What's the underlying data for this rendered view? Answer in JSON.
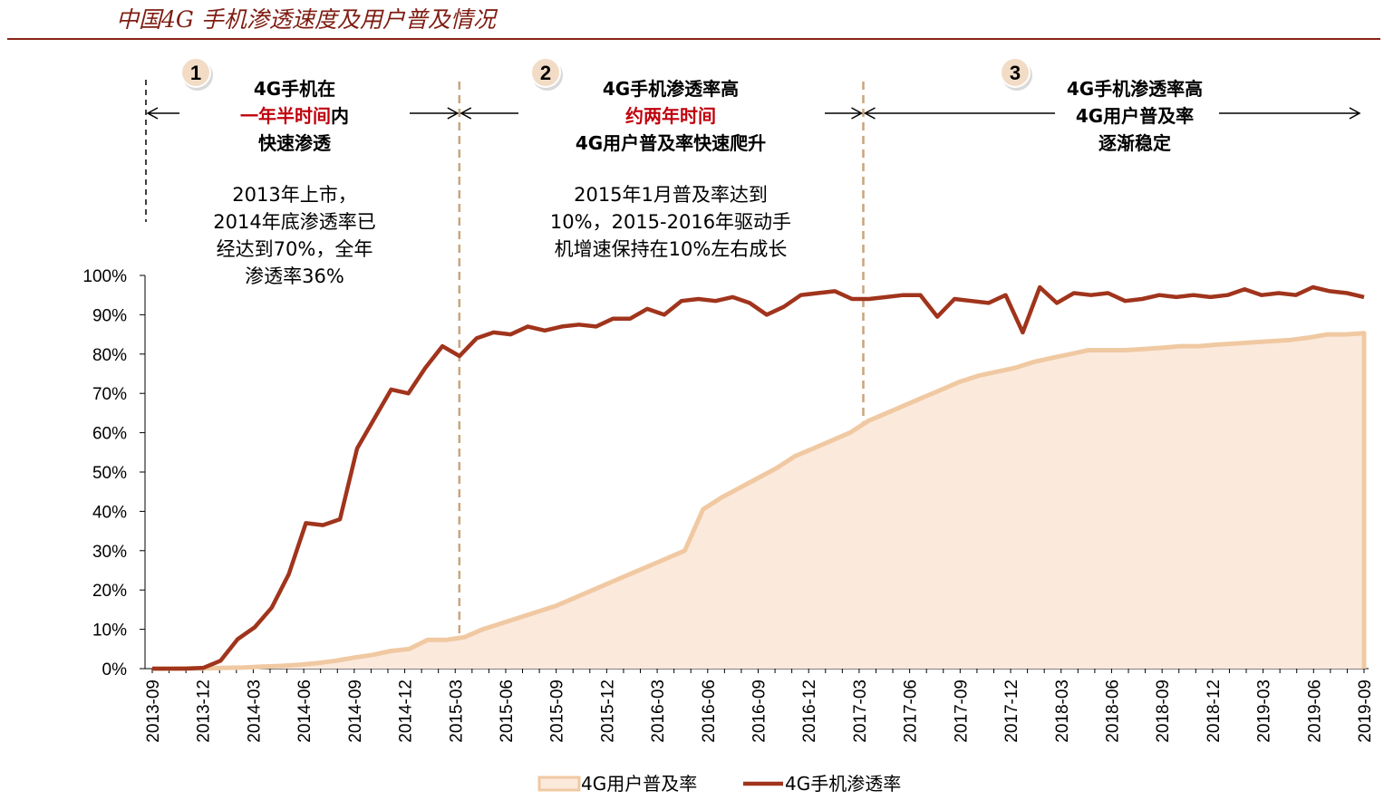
{
  "page_title": "中国4G 手机渗透速度及用户普及情况",
  "phases": [
    {
      "marker": "1",
      "lines": [
        {
          "text": "4G手机在",
          "highlight": false
        },
        {
          "text": "一年半时间",
          "highlight": true,
          "suffix": "内"
        },
        {
          "text": "快速渗透",
          "highlight": false
        }
      ],
      "note": [
        "2013年上市，",
        "2014年底渗透率已",
        "经达到70%，全年",
        "渗透率36%"
      ]
    },
    {
      "marker": "2",
      "lines": [
        {
          "text": "4G手机渗透率高",
          "highlight": false
        },
        {
          "text": "约两年时间",
          "highlight": true
        },
        {
          "text": "4G用户普及率快速爬升",
          "highlight": false
        }
      ],
      "note": [
        "2015年1月普及率达到",
        "10%，2015-2016年驱动手",
        "机增速保持在10%左右成长"
      ]
    },
    {
      "marker": "3",
      "lines": [
        {
          "text": "4G手机渗透率高",
          "highlight": false
        },
        {
          "text": "4G用户普及率",
          "highlight": false
        },
        {
          "text": "逐渐稳定",
          "highlight": false
        }
      ],
      "note": []
    }
  ],
  "chart_data": {
    "type": "line",
    "title": "中国4G 手机渗透速度及用户普及情况",
    "xlabel": "",
    "ylabel": "",
    "ylim": [
      0,
      100
    ],
    "y_ticks": [
      "0%",
      "10%",
      "20%",
      "30%",
      "40%",
      "50%",
      "60%",
      "70%",
      "80%",
      "90%",
      "100%"
    ],
    "x_ticks": [
      "2013-09",
      "2013-12",
      "2014-03",
      "2014-06",
      "2014-09",
      "2014-12",
      "2015-03",
      "2015-06",
      "2015-09",
      "2015-12",
      "2016-03",
      "2016-06",
      "2016-09",
      "2016-12",
      "2017-03",
      "2017-06",
      "2017-09",
      "2017-12",
      "2018-03",
      "2018-06",
      "2018-09",
      "2018-12",
      "2019-03",
      "2019-06",
      "2019-09"
    ],
    "phase_boundaries": [
      "2015-04",
      "2017-04"
    ],
    "legend": {
      "position": "bottom"
    },
    "series": [
      {
        "name": "4G用户普及率",
        "style": "area",
        "color": "#f0c9a2",
        "fill": "#fbe9dc",
        "values": [
          0,
          0,
          0.1,
          0.1,
          0.2,
          0.3,
          0.5,
          0.7,
          1,
          1.4,
          2,
          2.8,
          3.5,
          4.5,
          5,
          7.3,
          7.3,
          8,
          10,
          11.5,
          13,
          14.5,
          16,
          18,
          20,
          22,
          24,
          26,
          28,
          30,
          40.5,
          43.5,
          46,
          48.5,
          51,
          54,
          56,
          58,
          60,
          63,
          65,
          67,
          69,
          71,
          73,
          74.5,
          75.5,
          76.5,
          78,
          79,
          80,
          81,
          81,
          81,
          81.3,
          81.6,
          82,
          82,
          82.4,
          82.7,
          83,
          83.3,
          83.6,
          84.2,
          85,
          85,
          85.3
        ]
      },
      {
        "name": "4G手机渗透率",
        "style": "line",
        "color": "#a0341c",
        "values": [
          0,
          0,
          0,
          0.2,
          2,
          7.5,
          10.5,
          15.5,
          24,
          37,
          36.5,
          38,
          56,
          63.5,
          71,
          70,
          76.5,
          82,
          79.5,
          84,
          85.5,
          85,
          87,
          86,
          87,
          87.5,
          87,
          89,
          89,
          91.5,
          90,
          93.5,
          94,
          93.5,
          94.5,
          93,
          90,
          92,
          95,
          95.5,
          96,
          94,
          94,
          94.5,
          95,
          95,
          89.5,
          94,
          93.5,
          93,
          95,
          85.5,
          97,
          93,
          95.5,
          95,
          95.5,
          93.5,
          94,
          95,
          94.5,
          95,
          94.5,
          95,
          96.5,
          95,
          95.5,
          95,
          97,
          96,
          95.5,
          94.5
        ]
      }
    ]
  }
}
